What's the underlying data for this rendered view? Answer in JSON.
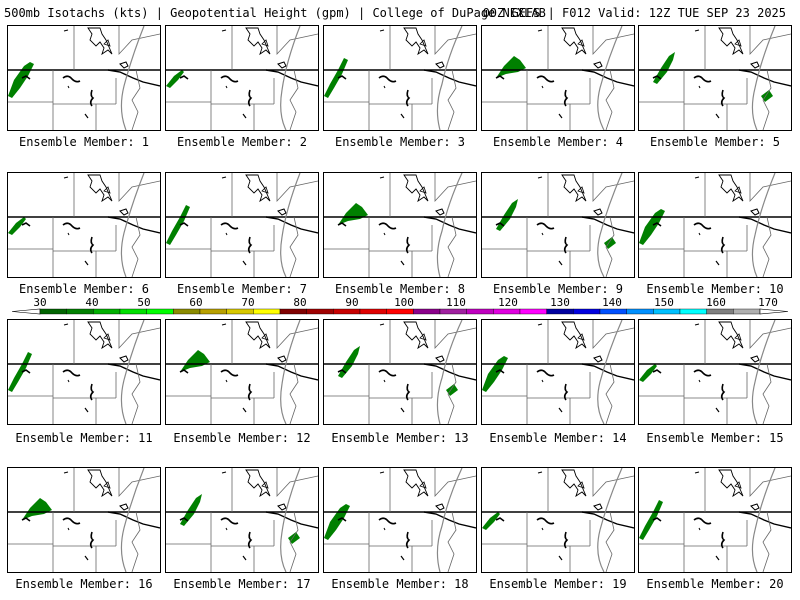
{
  "header": {
    "left": "500mb Isotachs (kts) | Geopotential Height (gpm) | College of DuPage NEXLAB",
    "right": "00Z GEFS | F012 Valid: 12Z TUE SEP 23 2025"
  },
  "members": [
    {
      "label": "Ensemble Member: 1"
    },
    {
      "label": "Ensemble Member: 2"
    },
    {
      "label": "Ensemble Member: 3"
    },
    {
      "label": "Ensemble Member: 4"
    },
    {
      "label": "Ensemble Member: 5"
    },
    {
      "label": "Ensemble Member: 6"
    },
    {
      "label": "Ensemble Member: 7"
    },
    {
      "label": "Ensemble Member: 8"
    },
    {
      "label": "Ensemble Member: 9"
    },
    {
      "label": "Ensemble Member: 10"
    },
    {
      "label": "Ensemble Member: 11"
    },
    {
      "label": "Ensemble Member: 12"
    },
    {
      "label": "Ensemble Member: 13"
    },
    {
      "label": "Ensemble Member: 14"
    },
    {
      "label": "Ensemble Member: 15"
    },
    {
      "label": "Ensemble Member: 16"
    },
    {
      "label": "Ensemble Member: 17"
    },
    {
      "label": "Ensemble Member: 18"
    },
    {
      "label": "Ensemble Member: 19"
    },
    {
      "label": "Ensemble Member: 20"
    }
  ],
  "colorbar": {
    "labels": [
      "30",
      "40",
      "50",
      "60",
      "70",
      "80",
      "90",
      "100",
      "110",
      "120",
      "130",
      "140",
      "150",
      "160",
      "170"
    ],
    "colors": [
      "#006400",
      "#008000",
      "#00b000",
      "#00e000",
      "#00ff00",
      "#8b8b00",
      "#b8a000",
      "#d8c800",
      "#ffff00",
      "#800000",
      "#a00000",
      "#c80000",
      "#e00000",
      "#ff0000",
      "#8b008b",
      "#a020a0",
      "#c000c0",
      "#e000e0",
      "#ff00ff",
      "#0000a0",
      "#0000e0",
      "#0050ff",
      "#0090ff",
      "#00c0ff",
      "#00ffff",
      "#808080",
      "#b0b0b0"
    ],
    "isotach_green": "#008000",
    "isotach_dark_green": "#006400"
  }
}
